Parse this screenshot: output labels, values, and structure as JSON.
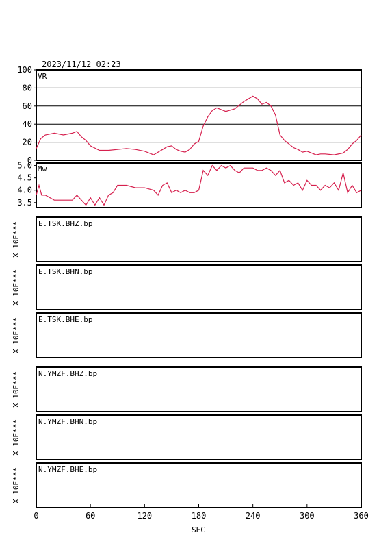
{
  "timestamp": "2023/11/12 02:23",
  "x_axis_label": "SEC",
  "colors": {
    "trace": "#d6204e",
    "frame": "#000000"
  },
  "chart_data": [
    {
      "type": "line",
      "label": "VR",
      "ylim": [
        0,
        100
      ],
      "yticks": [
        "0",
        "20",
        "40",
        "60",
        "80",
        "100"
      ],
      "grid": true,
      "x": [
        0,
        5,
        10,
        20,
        30,
        40,
        45,
        50,
        55,
        60,
        70,
        80,
        90,
        100,
        110,
        120,
        130,
        140,
        145,
        150,
        155,
        160,
        165,
        170,
        175,
        180,
        185,
        190,
        195,
        200,
        210,
        220,
        230,
        240,
        245,
        250,
        255,
        260,
        265,
        270,
        275,
        280,
        285,
        290,
        295,
        300,
        305,
        310,
        315,
        320,
        330,
        340,
        345,
        350,
        355,
        360
      ],
      "y": [
        13,
        24,
        28,
        30,
        28,
        30,
        32,
        26,
        22,
        16,
        11,
        11,
        12,
        13,
        12,
        10,
        6,
        12,
        15,
        16,
        12,
        10,
        9,
        12,
        18,
        21,
        38,
        48,
        55,
        58,
        54,
        57,
        65,
        71,
        68,
        62,
        64,
        60,
        50,
        28,
        22,
        18,
        14,
        12,
        9,
        10,
        8,
        6,
        7,
        7,
        6,
        8,
        12,
        18,
        22,
        28
      ]
    },
    {
      "type": "line",
      "label": "Mw",
      "ylim": [
        3.3,
        5.1
      ],
      "yticks": [
        "3.5",
        "4.0",
        "4.5",
        "5.0"
      ],
      "grid": false,
      "x": [
        0,
        3,
        6,
        10,
        20,
        30,
        40,
        45,
        50,
        55,
        60,
        65,
        70,
        75,
        80,
        85,
        90,
        100,
        110,
        120,
        130,
        135,
        140,
        145,
        150,
        155,
        160,
        165,
        170,
        175,
        180,
        185,
        190,
        195,
        200,
        205,
        210,
        215,
        220,
        225,
        230,
        235,
        240,
        245,
        250,
        255,
        260,
        265,
        270,
        275,
        280,
        285,
        290,
        295,
        300,
        305,
        310,
        315,
        320,
        325,
        330,
        335,
        340,
        345,
        350,
        355,
        360
      ],
      "y": [
        3.8,
        4.2,
        3.8,
        3.8,
        3.6,
        3.6,
        3.6,
        3.8,
        3.6,
        3.4,
        3.7,
        3.4,
        3.7,
        3.4,
        3.8,
        3.9,
        4.2,
        4.2,
        4.1,
        4.1,
        4.0,
        3.8,
        4.2,
        4.3,
        3.9,
        4.0,
        3.9,
        4.0,
        3.9,
        3.9,
        4.0,
        4.8,
        4.6,
        5.0,
        4.8,
        5.0,
        4.9,
        5.0,
        4.8,
        4.7,
        4.9,
        4.9,
        4.9,
        4.8,
        4.8,
        4.9,
        4.8,
        4.6,
        4.8,
        4.3,
        4.4,
        4.2,
        4.3,
        4.0,
        4.4,
        4.2,
        4.2,
        4.0,
        4.2,
        4.1,
        4.3,
        4.0,
        4.7,
        3.9,
        4.2,
        3.9,
        4.0
      ]
    }
  ],
  "seismograms": [
    {
      "station": "E.TSK.BHZ.bp",
      "scale": "X 10E***"
    },
    {
      "station": "E.TSK.BHN.bp",
      "scale": "X 10E***"
    },
    {
      "station": "E.TSK.BHE.bp",
      "scale": "X 10E***"
    },
    {
      "station": "N.YMZF.BHZ.bp",
      "scale": "X 10E***"
    },
    {
      "station": "N.YMZF.BHN.bp",
      "scale": "X 10E***"
    },
    {
      "station": "N.YMZF.BHE.bp",
      "scale": "X 10E***"
    }
  ],
  "xticks": [
    "0",
    "60",
    "120",
    "180",
    "240",
    "300",
    "360"
  ],
  "xlim": [
    0,
    360
  ]
}
